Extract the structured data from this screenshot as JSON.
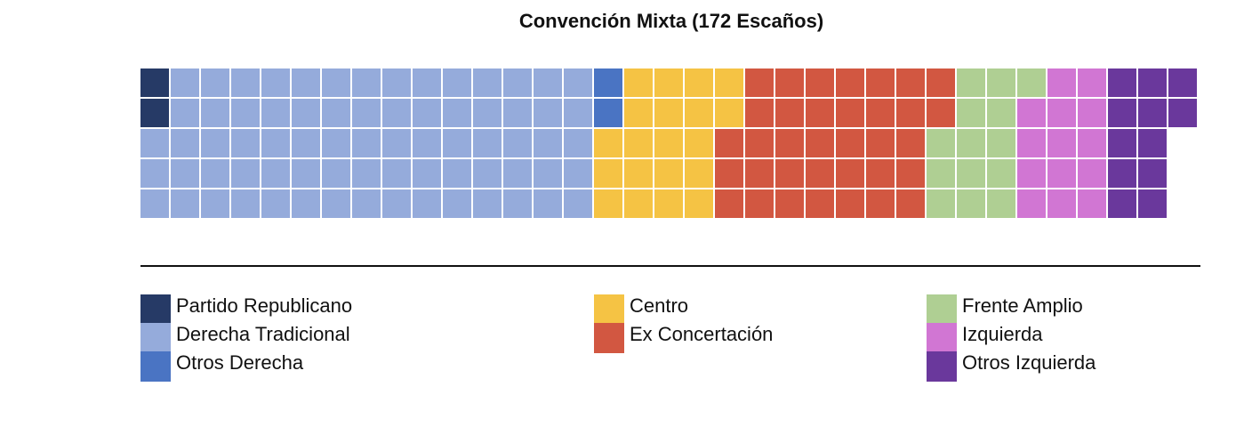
{
  "chart_data": {
    "type": "waffle",
    "title": "Convención Mixta (172 Escaños)",
    "rows": 5,
    "fill_order": "column-major, top to bottom",
    "parties": [
      {
        "name": "Partido Republicano",
        "seats": 2,
        "color": "#263a66"
      },
      {
        "name": "Derecha Tradicional",
        "seats": 73,
        "color": "#95abdb"
      },
      {
        "name": "Otros Derecha",
        "seats": 2,
        "color": "#4a74c3"
      },
      {
        "name": "Centro",
        "seats": 20,
        "color": "#f5c344"
      },
      {
        "name": "Ex Concertación",
        "seats": 35,
        "color": "#d25741"
      },
      {
        "name": "Frente Amplio",
        "seats": 14,
        "color": "#afcf93"
      },
      {
        "name": "Izquierda",
        "seats": 14,
        "color": "#d176d3"
      },
      {
        "name": "Otros Izquierda",
        "seats": 12,
        "color": "#6a389c"
      }
    ],
    "legend": {
      "columns": [
        [
          "Partido Republicano",
          "Derecha Tradicional",
          "Otros Derecha"
        ],
        [
          "Centro",
          "Ex Concertación"
        ],
        [
          "Frente Amplio",
          "Izquierda",
          "Otros Izquierda"
        ]
      ]
    }
  }
}
